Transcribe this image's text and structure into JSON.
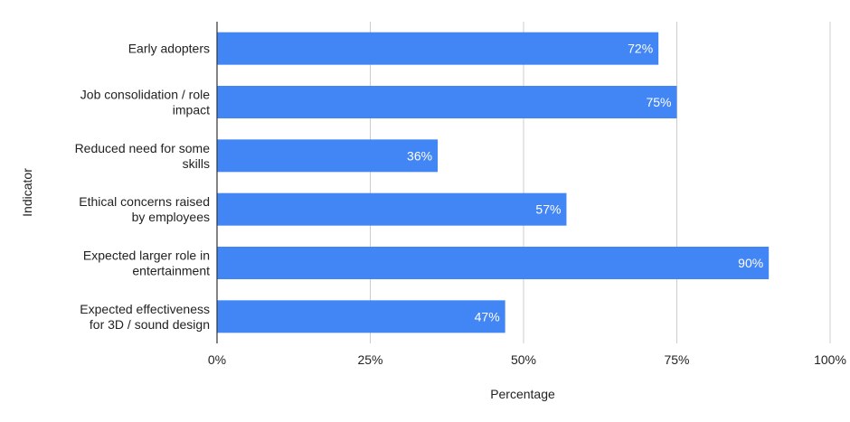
{
  "chart_data": {
    "type": "bar",
    "orientation": "horizontal",
    "categories": [
      "Early adopters",
      "Job consolidation / role impact",
      "Reduced need for some skills",
      "Ethical concerns raised by employees",
      "Expected larger role in entertainment",
      "Expected effectiveness for 3D / sound design"
    ],
    "category_lines": [
      [
        "Early adopters"
      ],
      [
        "Job consolidation / role",
        "impact"
      ],
      [
        "Reduced need for some",
        "skills"
      ],
      [
        "Ethical concerns raised",
        "by employees"
      ],
      [
        "Expected larger role in",
        "entertainment"
      ],
      [
        "Expected effectiveness",
        "for 3D / sound design"
      ]
    ],
    "values": [
      72,
      75,
      36,
      57,
      90,
      47
    ],
    "data_labels": [
      "72%",
      "75%",
      "36%",
      "57%",
      "90%",
      "47%"
    ],
    "xlim": [
      0,
      100
    ],
    "xticks": [
      0,
      25,
      50,
      75,
      100
    ],
    "xtick_labels": [
      "0%",
      "25%",
      "50%",
      "75%",
      "100%"
    ],
    "xlabel": "Percentage",
    "ylabel": "Indicator",
    "grid": "vertical",
    "legend": "none",
    "colors": {
      "bar": "#4285f4",
      "grid": "#cccccc",
      "axis": "#333333",
      "text": "#222222",
      "data_label": "#ffffff"
    }
  }
}
